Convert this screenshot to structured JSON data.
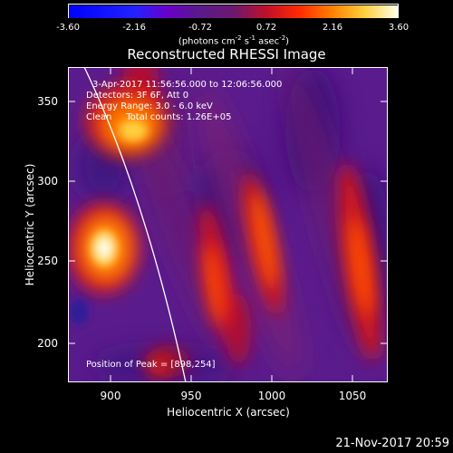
{
  "colorbar": {
    "ticks": [
      "-3.60",
      "-2.16",
      "-0.72",
      "0.72",
      "2.16",
      "3.60"
    ],
    "units_html": "(photons cm<sup style=\"font-size:7px\">-2</sup> s<sup style=\"font-size:7px\">-1</sup> asec<sup style=\"font-size:7px\">-2</sup>)",
    "units": "(photons cm-2 s-1 asec-2)",
    "range": [
      -3.6,
      3.6
    ]
  },
  "title": "Reconstructed RHESSI Image",
  "annotations": {
    "time": "3-Apr-2017 11:56:56.000 to 12:06:56.000",
    "detectors": "Detectors: 3F 6F, Att 0",
    "energy": "Energy Range: 3.0 - 6.0 keV",
    "method": "Clean     Total counts: 1.26E+05",
    "peak": "Position of Peak = [898,254]"
  },
  "axes": {
    "xlabel": "Heliocentric X (arcsec)",
    "ylabel": "Heliocentric Y (arcsec)",
    "xticks": [
      "900",
      "950",
      "1000",
      "1050"
    ],
    "yticks": [
      "350",
      "300",
      "250",
      "200"
    ],
    "xlim": [
      874,
      1066
    ],
    "ylim": [
      176,
      370
    ]
  },
  "peak": {
    "x": 898,
    "y": 254
  },
  "footer": "21-Nov-2017 20:59"
}
